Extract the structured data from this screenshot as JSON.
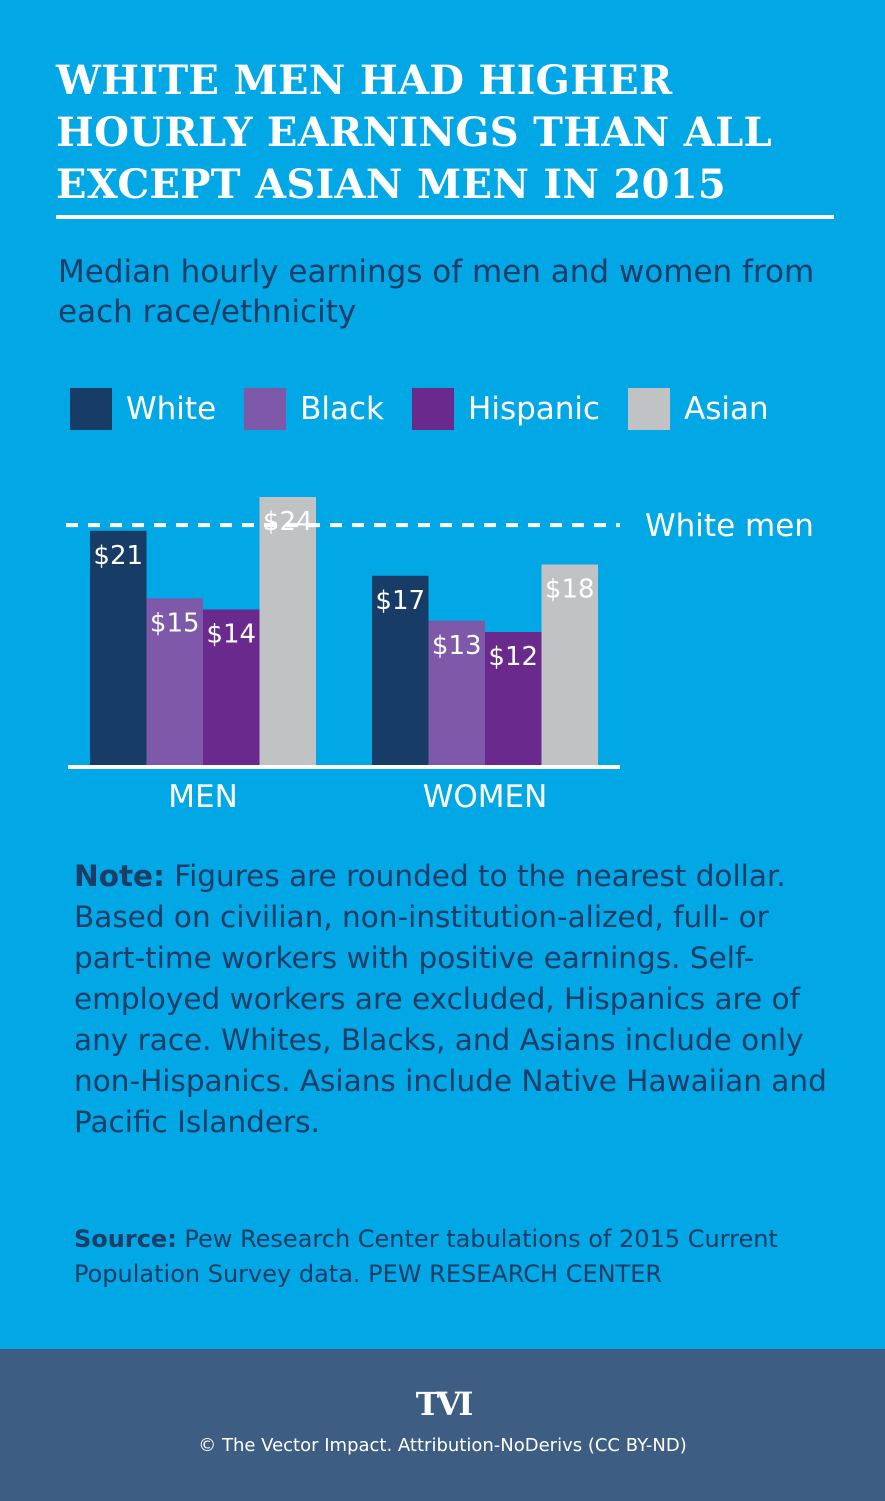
{
  "title": "WHITE MEN HAD HIGHER HOURLY EARNINGS THAN ALL EXCEPT ASIAN MEN IN 2015",
  "subtitle": "Median hourly earnings of men and women from each race/ethnicity",
  "note": {
    "label": "Note:",
    "text": " Figures are rounded to the nearest dollar. Based on civilian, non-institution-alized, full- or part-time workers with positive earnings. Self-employed workers are excluded, Hispanics are of any race. Whites, Blacks, and Asians include only non-Hispanics. Asians include Native Hawaiian and Pacific Islanders."
  },
  "source": {
    "label": "Source:",
    "text": " Pew Research Center tabulations of 2015 Current Population Survey data. PEW RESEARCH CENTER"
  },
  "footer": {
    "logo_text": "TVI",
    "credit": "© The Vector Impact. Attribution-NoDerivs (CC BY-ND)"
  },
  "colors": {
    "background": "#02a7e6",
    "text_dark": "#1b3d66",
    "footer": "#3d5d82"
  },
  "chart_data": {
    "type": "bar",
    "categories": [
      "MEN",
      "WOMEN"
    ],
    "series": [
      {
        "name": "White",
        "color": "#173c66",
        "values": [
          21,
          17
        ],
        "labels": [
          "$21",
          "$17"
        ]
      },
      {
        "name": "Black",
        "color": "#7f59a9",
        "values": [
          15,
          13
        ],
        "labels": [
          "$15",
          "$13"
        ]
      },
      {
        "name": "Hispanic",
        "color": "#6a2a8d",
        "values": [
          14,
          12
        ],
        "labels": [
          "$14",
          "$12"
        ]
      },
      {
        "name": "Asian",
        "color": "#c1c2c4",
        "values": [
          24,
          18
        ],
        "labels": [
          "$24",
          "$18"
        ]
      }
    ],
    "reference_line": {
      "label": "White men",
      "value": 21.5,
      "style": "dashed"
    },
    "ylim": [
      0,
      24
    ],
    "legend_position": "top",
    "grid": false
  }
}
